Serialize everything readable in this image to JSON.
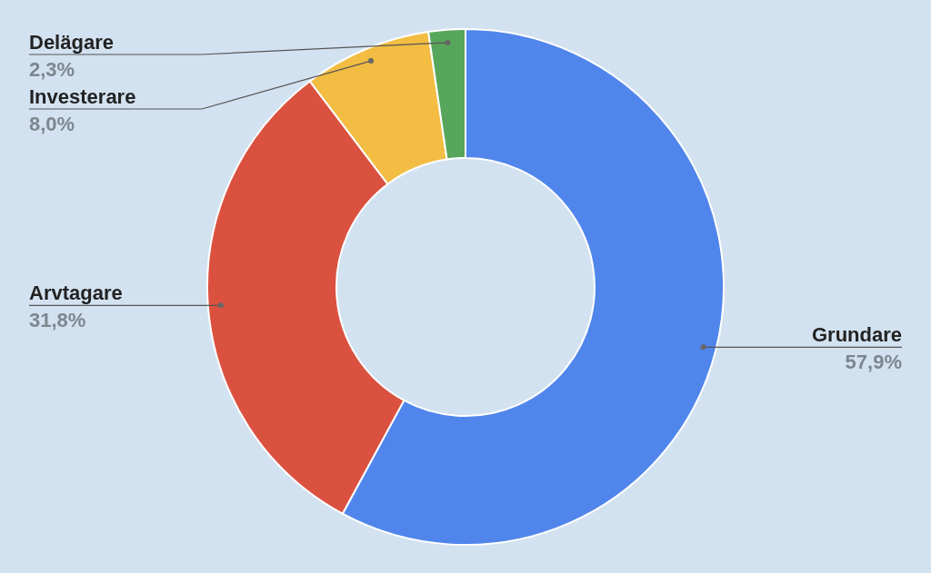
{
  "chart_data": {
    "type": "donut",
    "categories": [
      "Grundare",
      "Arvtagare",
      "Investerare",
      "Delägare"
    ],
    "values": [
      57.9,
      31.8,
      8.0,
      2.3
    ],
    "colors": [
      "#5086ec",
      "#db5140",
      "#f2bd42",
      "#58a65c"
    ],
    "value_labels": [
      "57,9%",
      "31,8%",
      "8,0%",
      "2,3%"
    ],
    "legend": false
  }
}
